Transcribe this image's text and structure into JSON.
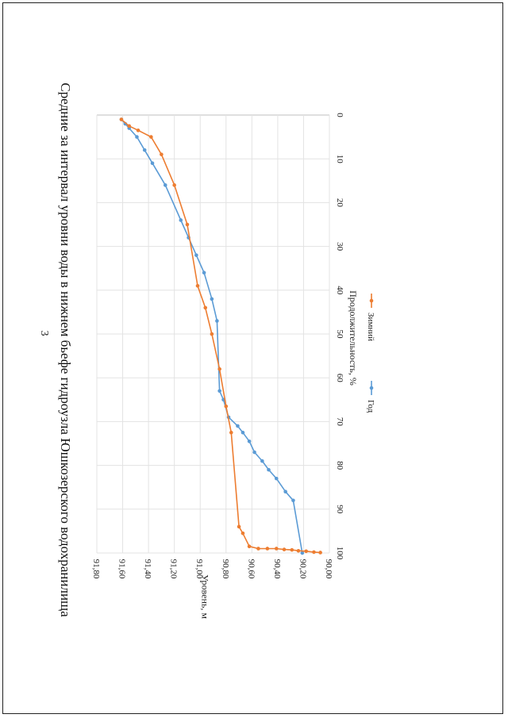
{
  "page": {
    "number": "3"
  },
  "chart_data": {
    "type": "line",
    "title": "Средние за интервал уровни воды в нижнем бьефе гидроузла Юшкозерского водохранилища",
    "xlabel": "Продолжительность, %",
    "ylabel": "Уровень, м",
    "xlim": [
      0,
      100
    ],
    "ylim": [
      90.0,
      91.8
    ],
    "x_ticks": [
      "0",
      "10",
      "20",
      "30",
      "40",
      "50",
      "60",
      "70",
      "80",
      "90",
      "100"
    ],
    "y_ticks": [
      "90,00",
      "90,20",
      "90,40",
      "90,60",
      "90,80",
      "91,00",
      "91,20",
      "91,40",
      "91,60",
      "91,80"
    ],
    "grid": true,
    "legend_position": "bottom",
    "orientation": "page rotated 90 degrees clockwise",
    "series": [
      {
        "name": "Год",
        "color": "#5b9bd5",
        "points": [
          [
            1.0,
            91.61
          ],
          [
            2.0,
            91.58
          ],
          [
            3.0,
            91.55
          ],
          [
            5.0,
            91.49
          ],
          [
            8.0,
            91.43
          ],
          [
            11.0,
            91.37
          ],
          [
            16.0,
            91.27
          ],
          [
            24.0,
            91.15
          ],
          [
            28.0,
            91.09
          ],
          [
            32.0,
            91.03
          ],
          [
            36.0,
            90.97
          ],
          [
            42.0,
            90.91
          ],
          [
            47.0,
            90.87
          ],
          [
            63.0,
            90.85
          ],
          [
            65.0,
            90.82
          ],
          [
            69.0,
            90.78
          ],
          [
            71.0,
            90.71
          ],
          [
            72.5,
            90.67
          ],
          [
            74.5,
            90.62
          ],
          [
            77.0,
            90.58
          ],
          [
            79.0,
            90.52
          ],
          [
            81.0,
            90.47
          ],
          [
            83.0,
            90.41
          ],
          [
            86.0,
            90.34
          ],
          [
            88.0,
            90.28
          ],
          [
            100.0,
            90.21
          ]
        ]
      },
      {
        "name": "Зимний",
        "color": "#ed7d31",
        "points": [
          [
            1.0,
            91.61
          ],
          [
            2.5,
            91.55
          ],
          [
            3.5,
            91.48
          ],
          [
            5.0,
            91.38
          ],
          [
            9.0,
            91.3
          ],
          [
            16.0,
            91.2
          ],
          [
            25.0,
            91.1
          ],
          [
            39.0,
            91.02
          ],
          [
            44.0,
            90.96
          ],
          [
            50.0,
            90.91
          ],
          [
            58.0,
            90.85
          ],
          [
            66.5,
            90.8
          ],
          [
            72.5,
            90.76
          ],
          [
            94.0,
            90.7
          ],
          [
            95.5,
            90.67
          ],
          [
            98.5,
            90.62
          ],
          [
            99.0,
            90.55
          ],
          [
            99.0,
            90.48
          ],
          [
            99.0,
            90.41
          ],
          [
            99.2,
            90.35
          ],
          [
            99.3,
            90.29
          ],
          [
            99.5,
            90.24
          ],
          [
            99.6,
            90.18
          ],
          [
            99.8,
            90.12
          ],
          [
            99.9,
            90.07
          ]
        ]
      }
    ]
  }
}
